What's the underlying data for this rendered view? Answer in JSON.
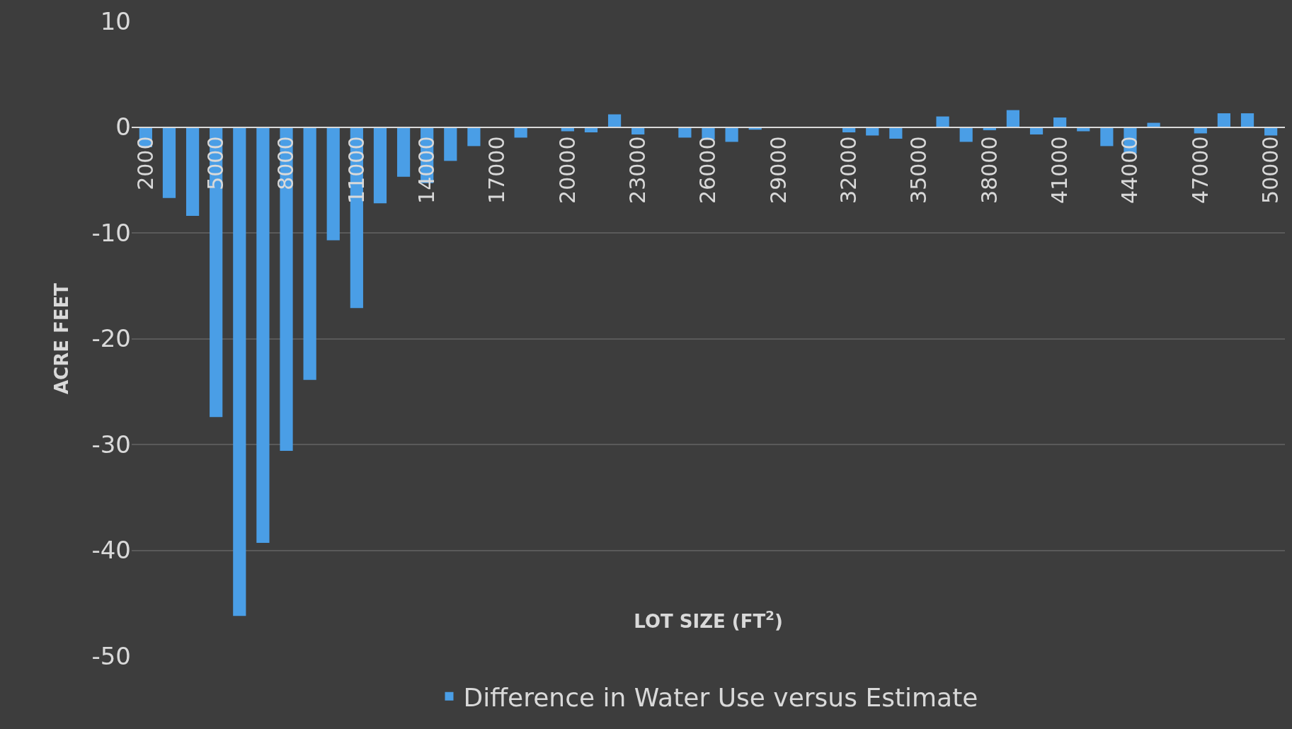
{
  "chart_data": {
    "type": "bar",
    "xlabel": "LOT SIZE (FT$^{2}$)",
    "ylabel": "ACRE FEET",
    "categories": [
      "2000",
      null,
      null,
      "5000",
      null,
      null,
      "8000",
      null,
      null,
      "11000",
      null,
      null,
      "14000",
      null,
      null,
      "17000",
      null,
      null,
      "20000",
      null,
      null,
      "23000",
      null,
      null,
      "26000",
      null,
      null,
      "29000",
      null,
      null,
      "32000",
      null,
      null,
      "35000",
      null,
      null,
      "38000",
      null,
      null,
      "41000",
      null,
      null,
      "44000",
      null,
      null,
      "47000",
      null,
      null,
      "50000"
    ],
    "series": [
      {
        "name": "Difference in Water Use versus Estimate",
        "color": "#4a9ee6",
        "values": [
          -1.9,
          -6.7,
          -8.4,
          -27.4,
          -46.2,
          -39.3,
          -30.6,
          -23.9,
          -10.7,
          -17.1,
          -7.2,
          -4.7,
          -5.3,
          -3.2,
          -1.8,
          0,
          -1.0,
          0,
          -0.4,
          -0.5,
          1.2,
          -0.7,
          0,
          -1.0,
          -1.2,
          -1.4,
          -0.25,
          0,
          0,
          0,
          -0.5,
          -0.8,
          -1.1,
          0,
          1.0,
          -1.4,
          -0.3,
          1.6,
          -0.7,
          0.9,
          -0.4,
          -1.8,
          -2.5,
          0.4,
          0,
          -0.6,
          1.3,
          1.3,
          -0.8
        ]
      }
    ],
    "ylim": [
      -50,
      10
    ],
    "yticks": [
      -50,
      -40,
      -30,
      -20,
      -10,
      0,
      10
    ],
    "grid": "y",
    "legend": "bottom"
  }
}
